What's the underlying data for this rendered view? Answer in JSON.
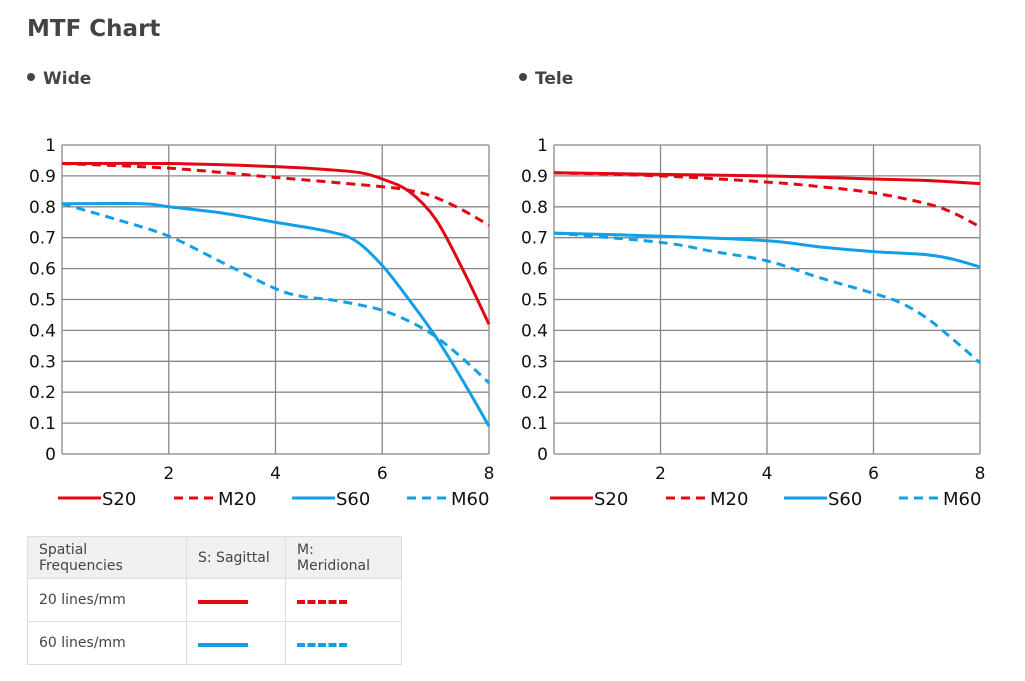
{
  "title": "MTF Chart",
  "colors": {
    "red": "#e30613",
    "blue": "#129fe6",
    "grid": "#777777"
  },
  "chart_data": [
    {
      "type": "line",
      "title": "Wide",
      "xlim": [
        0,
        8
      ],
      "ylim": [
        0,
        1
      ],
      "xticks": [
        "2",
        "4",
        "6",
        "8"
      ],
      "yticks": [
        "0",
        "0.1",
        "0.2",
        "0.3",
        "0.4",
        "0.5",
        "0.6",
        "0.7",
        "0.8",
        "0.9",
        "1"
      ],
      "grid": true,
      "legend_position": "bottom",
      "series": [
        {
          "name": "S20",
          "color": "red",
          "dashed": false,
          "x": [
            0,
            2,
            4,
            5,
            5.6,
            6,
            6.5,
            7,
            7.5,
            8
          ],
          "y": [
            0.94,
            0.94,
            0.93,
            0.92,
            0.91,
            0.89,
            0.85,
            0.76,
            0.6,
            0.42
          ]
        },
        {
          "name": "M20",
          "color": "red",
          "dashed": true,
          "x": [
            0,
            2,
            4,
            6,
            6.6,
            7,
            7.5,
            8
          ],
          "y": [
            0.94,
            0.925,
            0.895,
            0.865,
            0.85,
            0.83,
            0.79,
            0.74
          ]
        },
        {
          "name": "S60",
          "color": "blue",
          "dashed": false,
          "x": [
            0,
            1.5,
            2,
            3,
            4,
            5,
            5.5,
            6,
            6.5,
            7,
            7.5,
            8
          ],
          "y": [
            0.81,
            0.81,
            0.8,
            0.78,
            0.75,
            0.72,
            0.69,
            0.61,
            0.5,
            0.38,
            0.24,
            0.09
          ]
        },
        {
          "name": "M60",
          "color": "blue",
          "dashed": true,
          "x": [
            0,
            1,
            2,
            3,
            4,
            4.5,
            5,
            5.5,
            6,
            6.5,
            7,
            7.5,
            8
          ],
          "y": [
            0.81,
            0.76,
            0.705,
            0.62,
            0.535,
            0.51,
            0.5,
            0.485,
            0.465,
            0.43,
            0.38,
            0.31,
            0.23
          ]
        }
      ]
    },
    {
      "type": "line",
      "title": "Tele",
      "xlim": [
        0,
        8
      ],
      "ylim": [
        0,
        1
      ],
      "xticks": [
        "2",
        "4",
        "6",
        "8"
      ],
      "yticks": [
        "0",
        "0.1",
        "0.2",
        "0.3",
        "0.4",
        "0.5",
        "0.6",
        "0.7",
        "0.8",
        "0.9",
        "1"
      ],
      "grid": true,
      "legend_position": "bottom",
      "series": [
        {
          "name": "S20",
          "color": "red",
          "dashed": false,
          "x": [
            0,
            2,
            4,
            6,
            7,
            8
          ],
          "y": [
            0.91,
            0.905,
            0.9,
            0.89,
            0.885,
            0.875
          ]
        },
        {
          "name": "M20",
          "color": "red",
          "dashed": true,
          "x": [
            0,
            2,
            4,
            5,
            6,
            7,
            7.5,
            8
          ],
          "y": [
            0.91,
            0.9,
            0.88,
            0.865,
            0.845,
            0.81,
            0.78,
            0.735
          ]
        },
        {
          "name": "S60",
          "color": "blue",
          "dashed": false,
          "x": [
            0,
            2,
            4,
            5,
            6,
            7,
            7.5,
            8
          ],
          "y": [
            0.715,
            0.705,
            0.69,
            0.67,
            0.655,
            0.645,
            0.63,
            0.605
          ]
        },
        {
          "name": "M60",
          "color": "blue",
          "dashed": true,
          "x": [
            0,
            2,
            3,
            4,
            5,
            6,
            6.5,
            7,
            7.5,
            8
          ],
          "y": [
            0.715,
            0.685,
            0.655,
            0.625,
            0.57,
            0.52,
            0.49,
            0.44,
            0.37,
            0.295
          ]
        }
      ]
    }
  ],
  "table": {
    "headers": [
      "Spatial Frequencies",
      "S: Sagittal",
      "M: Meridional"
    ],
    "rows": [
      {
        "label": "20 lines/mm",
        "color": "red"
      },
      {
        "label": "60 lines/mm",
        "color": "blue"
      }
    ]
  }
}
